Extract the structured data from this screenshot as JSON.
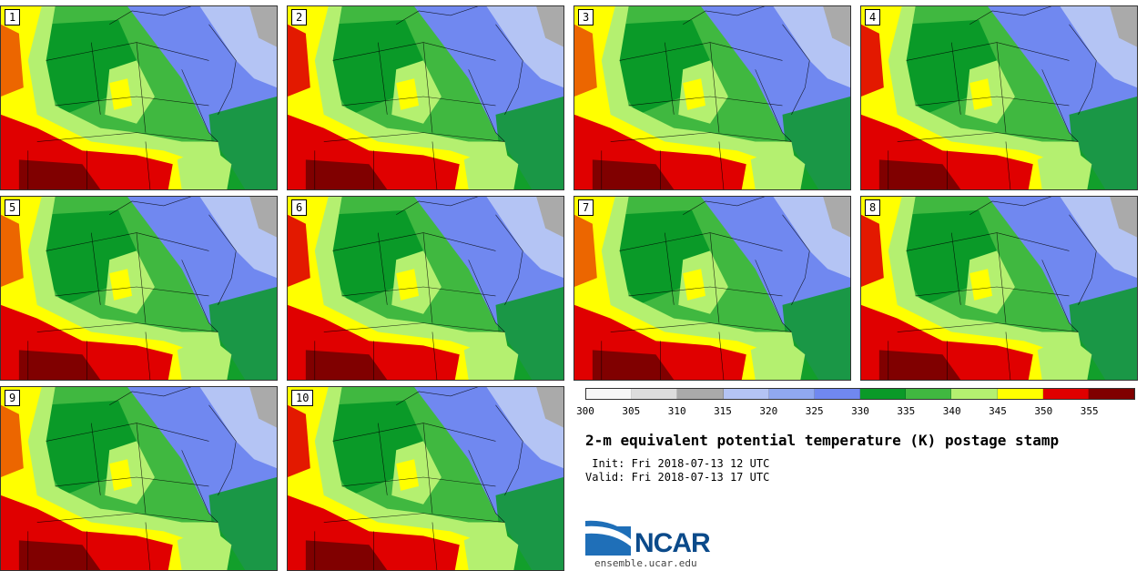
{
  "panels": [
    {
      "label": "1"
    },
    {
      "label": "2"
    },
    {
      "label": "3"
    },
    {
      "label": "4"
    },
    {
      "label": "5"
    },
    {
      "label": "6"
    },
    {
      "label": "7"
    },
    {
      "label": "8"
    },
    {
      "label": "9"
    },
    {
      "label": "10"
    }
  ],
  "colorbar": {
    "colors": [
      "#f7f7f7",
      "#dddddd",
      "#aaaaaa",
      "#b4c4f4",
      "#90a8f0",
      "#7088f0",
      "#0a9a28",
      "#40b840",
      "#b4f070",
      "#ffff00",
      "#e00000",
      "#800000"
    ],
    "ticks": [
      "300",
      "305",
      "310",
      "315",
      "320",
      "325",
      "330",
      "335",
      "340",
      "345",
      "350",
      "355"
    ]
  },
  "title": "2-m equivalent potential temperature (K) postage stamp",
  "init": " Init: Fri 2018-07-13 12 UTC",
  "valid": "Valid: Fri 2018-07-13 17 UTC",
  "logo": {
    "name": "NCAR",
    "url": "ensemble.ucar.edu"
  },
  "map_colors": {
    "red": "#e00000",
    "darkred": "#800000",
    "yellow": "#ffff00",
    "lightgreen": "#b4f070",
    "green": "#40b840",
    "darkgreen": "#0a9a28",
    "blue": "#7088f0",
    "lightblue": "#b4c4f4",
    "gray": "#aaaaaa"
  }
}
